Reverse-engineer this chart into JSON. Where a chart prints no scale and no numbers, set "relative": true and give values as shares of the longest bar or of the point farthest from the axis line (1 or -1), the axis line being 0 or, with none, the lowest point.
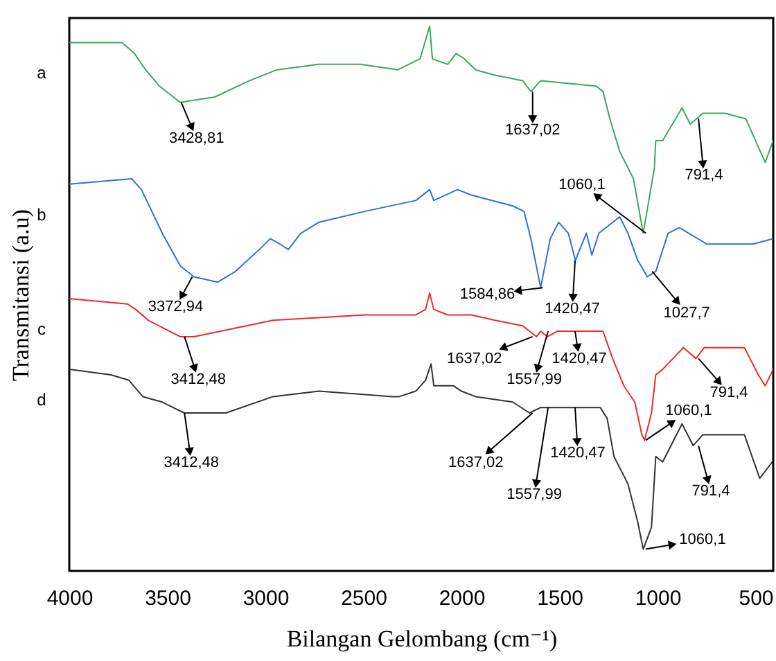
{
  "chart_data": {
    "type": "line",
    "xlabel": "Bilangan Gelombang (cm⁻¹)",
    "ylabel": "Transmitansi (a.u)",
    "relative": true,
    "legend": false,
    "grid": false,
    "xlim": [
      4000,
      410
    ],
    "xticks": [
      4000,
      3500,
      3000,
      2500,
      2000,
      1500,
      1000,
      500
    ],
    "series": [
      {
        "name": "a",
        "color": "#3aa860",
        "x": [
          4000,
          3731,
          3668,
          3611,
          3540,
          3434,
          3258,
          3081,
          2940,
          2727,
          2515,
          2324,
          2211,
          2162,
          2148,
          2070,
          2027,
          1985,
          1928,
          1829,
          1688,
          1646,
          1596,
          1313,
          1278,
          1243,
          1193,
          1123,
          1073,
          1016,
          1009,
          974,
          875,
          833,
          769,
          656,
          550,
          451,
          410
        ],
        "values": [
          0.97,
          0.97,
          0.95,
          0.92,
          0.89,
          0.86,
          0.87,
          0.9,
          0.92,
          0.93,
          0.93,
          0.92,
          0.94,
          1,
          0.94,
          0.93,
          0.95,
          0.94,
          0.92,
          0.91,
          0.9,
          0.88,
          0.9,
          0.89,
          0.88,
          0.83,
          0.77,
          0.72,
          0.62,
          0.74,
          0.79,
          0.79,
          0.85,
          0.82,
          0.84,
          0.84,
          0.83,
          0.75,
          0.79
        ]
      },
      {
        "name": "b",
        "color": "#2f6fdc",
        "x": [
          4000,
          3682,
          3632,
          3526,
          3434,
          3364,
          3244,
          3152,
          3031,
          2975,
          2925,
          2883,
          2819,
          2727,
          2494,
          2233,
          2162,
          2141,
          2020,
          1950,
          1738,
          1681,
          1646,
          1596,
          1547,
          1504,
          1455,
          1419,
          1363,
          1335,
          1299,
          1264,
          1193,
          1151,
          1101,
          1052,
          1009,
          946,
          889,
          748,
          656,
          514,
          410
        ],
        "values": [
          0.71,
          0.72,
          0.7,
          0.62,
          0.56,
          0.54,
          0.53,
          0.55,
          0.59,
          0.61,
          0.6,
          0.59,
          0.62,
          0.64,
          0.66,
          0.68,
          0.7,
          0.68,
          0.7,
          0.69,
          0.67,
          0.66,
          0.61,
          0.52,
          0.61,
          0.64,
          0.62,
          0.57,
          0.62,
          0.58,
          0.62,
          0.63,
          0.65,
          0.62,
          0.57,
          0.54,
          0.55,
          0.62,
          0.63,
          0.6,
          0.6,
          0.6,
          0.61
        ]
      },
      {
        "name": "c",
        "color": "#ee2a2a",
        "x": [
          4000,
          3703,
          3661,
          3597,
          3434,
          3364,
          2961,
          2494,
          2233,
          2183,
          2162,
          2141,
          2070,
          1950,
          1829,
          1688,
          1617,
          1596,
          1561,
          1511,
          1455,
          1419,
          1398,
          1278,
          1229,
          1172,
          1116,
          1080,
          1066,
          1031,
          1009,
          974,
          868,
          804,
          762,
          557,
          486,
          451,
          410
        ],
        "values": [
          0.5,
          0.49,
          0.48,
          0.46,
          0.43,
          0.43,
          0.46,
          0.47,
          0.47,
          0.48,
          0.51,
          0.48,
          0.47,
          0.47,
          0.46,
          0.45,
          0.43,
          0.44,
          0.43,
          0.44,
          0.44,
          0.44,
          0.44,
          0.44,
          0.39,
          0.34,
          0.31,
          0.25,
          0.24,
          0.29,
          0.36,
          0.37,
          0.41,
          0.39,
          0.41,
          0.41,
          0.36,
          0.34,
          0.37
        ]
      },
      {
        "name": "d",
        "color": "#333333",
        "x": [
          4000,
          3788,
          3696,
          3625,
          3526,
          3413,
          3201,
          2961,
          2727,
          2353,
          2317,
          2233,
          2183,
          2155,
          2141,
          2042,
          2000,
          1928,
          1738,
          1653,
          1596,
          1292,
          1257,
          1222,
          1151,
          1101,
          1073,
          1031,
          1009,
          974,
          875,
          818,
          769,
          557,
          479,
          415
        ],
        "values": [
          0.37,
          0.36,
          0.35,
          0.32,
          0.31,
          0.29,
          0.29,
          0.32,
          0.33,
          0.32,
          0.32,
          0.33,
          0.35,
          0.38,
          0.34,
          0.34,
          0.33,
          0.32,
          0.31,
          0.29,
          0.3,
          0.3,
          0.28,
          0.21,
          0.16,
          0.09,
          0.04,
          0.08,
          0.21,
          0.2,
          0.27,
          0.23,
          0.25,
          0.25,
          0.17,
          0.2
        ]
      }
    ],
    "annotations": [
      {
        "text": "3428,81",
        "x": 3428.81,
        "y": 0.86
      },
      {
        "text": "1637,02",
        "x": 1637.02,
        "y": 0.88
      },
      {
        "text": "1060,1",
        "x": 1060.1,
        "y": 0.62
      },
      {
        "text": "791,4",
        "x": 791.4,
        "y": 0.83
      },
      {
        "text": "3372,94",
        "x": 3372.94,
        "y": 0.54
      },
      {
        "text": "1584,86",
        "x": 1584.86,
        "y": 0.52
      },
      {
        "text": "1420,47",
        "x": 1420.47,
        "y": 0.57
      },
      {
        "text": "1027,7",
        "x": 1027.7,
        "y": 0.55
      },
      {
        "text": "3412,48",
        "x": 3412.48,
        "y": 0.43
      },
      {
        "text": "1637,02",
        "x": 1637.02,
        "y": 0.43
      },
      {
        "text": "1557,99",
        "x": 1557.99,
        "y": 0.44
      },
      {
        "text": "1420,47",
        "x": 1420.47,
        "y": 0.44
      },
      {
        "text": "1060,1",
        "x": 1060.1,
        "y": 0.24
      },
      {
        "text": "791,4",
        "x": 791.4,
        "y": 0.39
      },
      {
        "text": "3412,48",
        "x": 3412.48,
        "y": 0.29
      },
      {
        "text": "1637,02",
        "x": 1637.02,
        "y": 0.29
      },
      {
        "text": "1557,99",
        "x": 1557.99,
        "y": 0.3
      },
      {
        "text": "1420,47",
        "x": 1420.47,
        "y": 0.3
      },
      {
        "text": "791,4",
        "x": 791.4,
        "y": 0.23
      },
      {
        "text": "1060,1",
        "x": 1060.1,
        "y": 0.04
      }
    ]
  }
}
